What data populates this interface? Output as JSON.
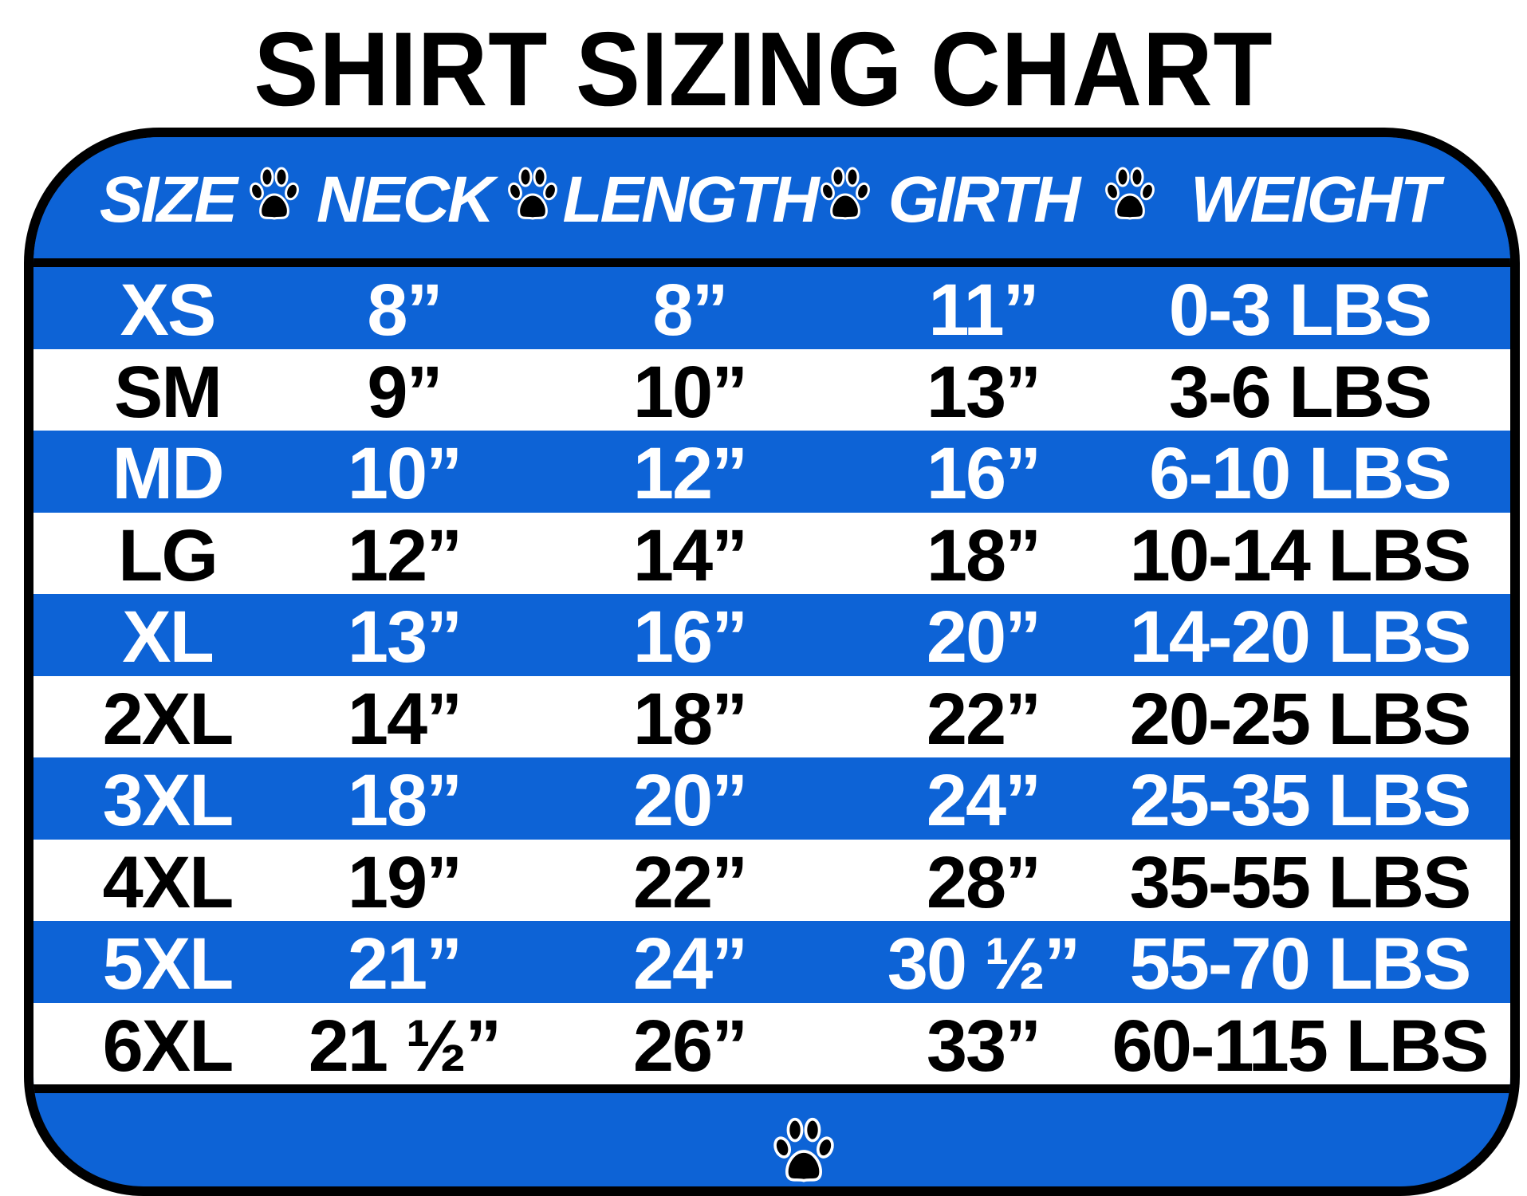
{
  "title": "SHIRT SIZING CHART",
  "colors": {
    "blue": "#0d63d6",
    "border": "#000000",
    "white": "#ffffff"
  },
  "header": {
    "columns": [
      "SIZE",
      "NECK",
      "LENGTH",
      "GIRTH",
      "WEIGHT"
    ],
    "separator_icon": "paw-print-icon"
  },
  "rows": [
    {
      "size": "XS",
      "neck": "8”",
      "length": "8”",
      "girth": "11”",
      "weight": "0-3 LBS"
    },
    {
      "size": "SM",
      "neck": "9”",
      "length": "10”",
      "girth": "13”",
      "weight": "3-6 LBS"
    },
    {
      "size": "MD",
      "neck": "10”",
      "length": "12”",
      "girth": "16”",
      "weight": "6-10 LBS"
    },
    {
      "size": "LG",
      "neck": "12”",
      "length": "14”",
      "girth": "18”",
      "weight": "10-14 LBS"
    },
    {
      "size": "XL",
      "neck": "13”",
      "length": "16”",
      "girth": "20”",
      "weight": "14-20 LBS"
    },
    {
      "size": "2XL",
      "neck": "14”",
      "length": "18”",
      "girth": "22”",
      "weight": "20-25 LBS"
    },
    {
      "size": "3XL",
      "neck": "18”",
      "length": "20”",
      "girth": "24”",
      "weight": "25-35 LBS"
    },
    {
      "size": "4XL",
      "neck": "19”",
      "length": "22”",
      "girth": "28”",
      "weight": "35-55 LBS"
    },
    {
      "size": "5XL",
      "neck": "21”",
      "length": "24”",
      "girth": "30 ½”",
      "weight": "55-70 LBS"
    },
    {
      "size": "6XL",
      "neck": "21 ½”",
      "length": "26”",
      "girth": "33”",
      "weight": "60-115 LBS"
    }
  ],
  "footer": {
    "icon": "paw-print-icon"
  }
}
